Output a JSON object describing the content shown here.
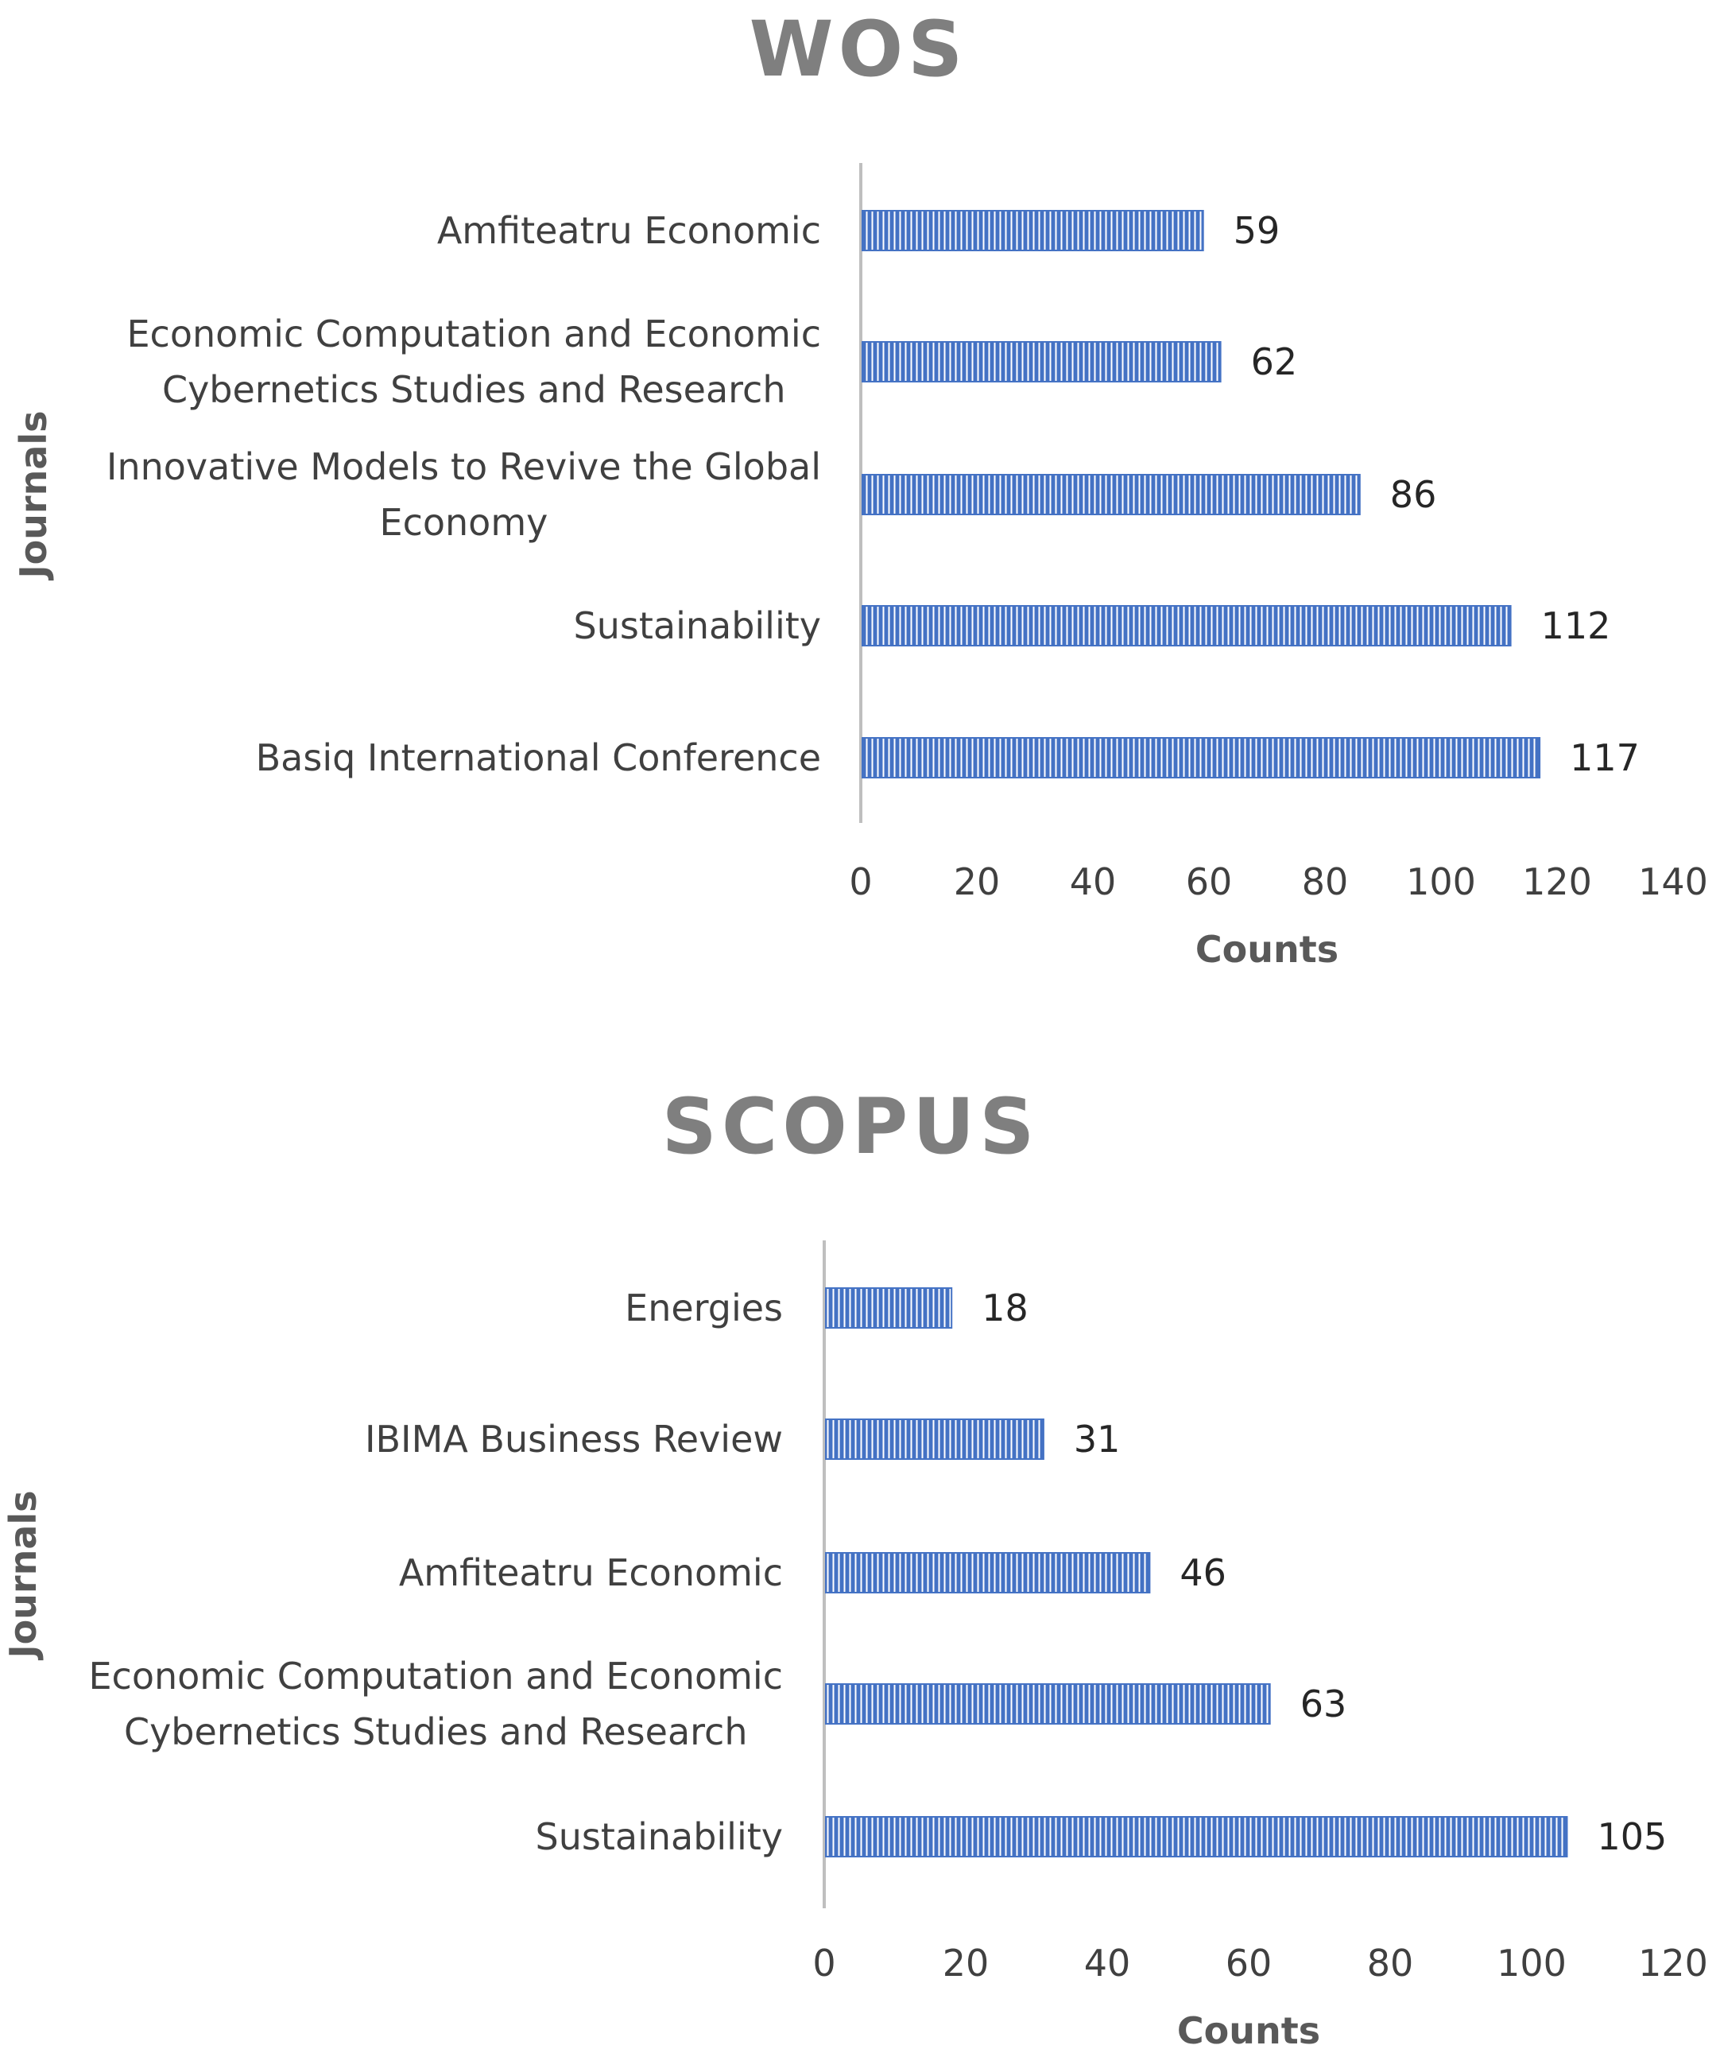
{
  "palette": {
    "bar": "#4472c4",
    "bar_stripe": "#ffffff",
    "axis": "#bfbfbf",
    "title": "#7f7f7f",
    "text": "#404040"
  },
  "chart_data": [
    {
      "type": "bar",
      "orientation": "horizontal",
      "title": "WOS",
      "xlabel": "Counts",
      "ylabel": "Journals",
      "xlim": [
        0,
        140
      ],
      "xticks": [
        "0",
        "20",
        "40",
        "60",
        "80",
        "100",
        "120",
        "140"
      ],
      "grid": false,
      "legend": "none",
      "categories": [
        [
          "Amfiteatru Economic"
        ],
        [
          "Economic Computation and Economic",
          "Cybernetics Studies and Research"
        ],
        [
          "Innovative Models to Revive the Global",
          "Economy"
        ],
        [
          "Sustainability"
        ],
        [
          "Basiq International Conference"
        ]
      ],
      "values": [
        59,
        62,
        86,
        112,
        117
      ]
    },
    {
      "type": "bar",
      "orientation": "horizontal",
      "title": "SCOPUS",
      "xlabel": "Counts",
      "ylabel": "Journals",
      "xlim": [
        0,
        120
      ],
      "xticks": [
        "0",
        "20",
        "40",
        "60",
        "80",
        "100",
        "120"
      ],
      "grid": false,
      "legend": "none",
      "categories": [
        [
          "Energies"
        ],
        [
          "IBIMA Business Review"
        ],
        [
          "Amfiteatru Economic"
        ],
        [
          "Economic Computation and Economic",
          "Cybernetics Studies and Research"
        ],
        [
          "Sustainability"
        ]
      ],
      "values": [
        18,
        31,
        46,
        63,
        105
      ]
    }
  ]
}
